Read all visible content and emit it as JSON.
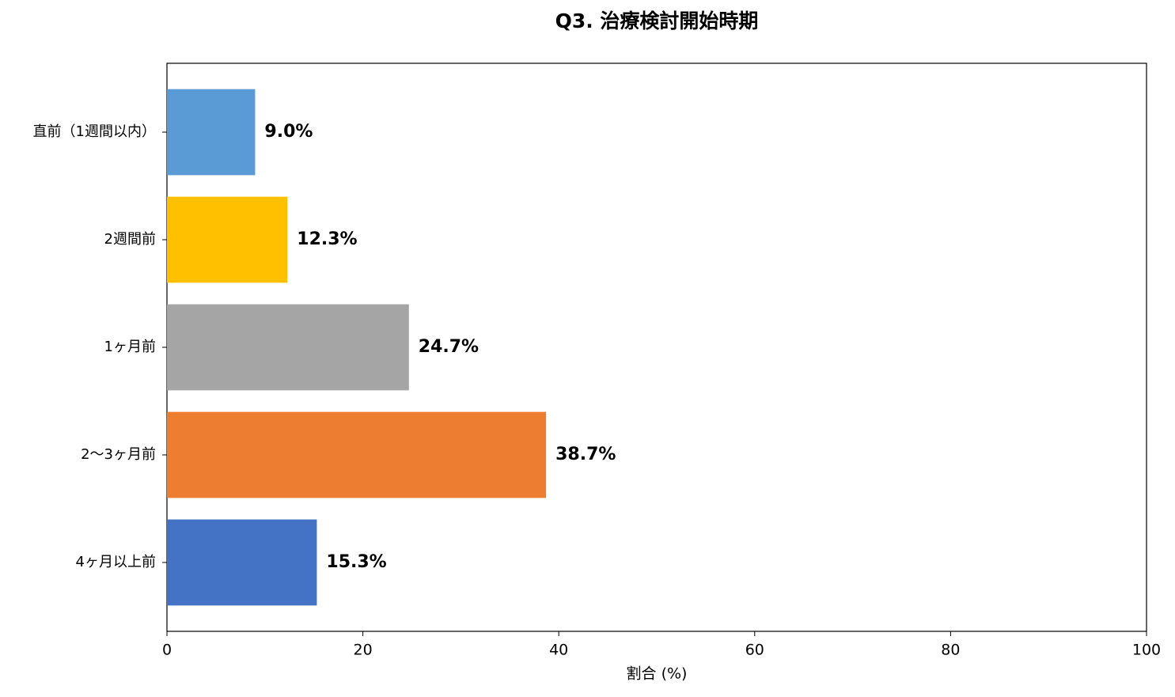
{
  "chart_data": {
    "type": "barh",
    "title": "Q3. 治療検討開始時期",
    "xlabel": "割合 (%)",
    "categories": [
      "直前（1週間以内）",
      "2週間前",
      "1ヶ月前",
      "2〜3ヶ月前",
      "4ヶ月以上前"
    ],
    "values": [
      9.0,
      12.3,
      24.7,
      38.7,
      15.3
    ],
    "value_labels": [
      "9.0%",
      "12.3%",
      "24.7%",
      "38.7%",
      "15.3%"
    ],
    "colors": [
      "#5b9bd5",
      "#ffc000",
      "#a5a5a5",
      "#ed7d31",
      "#4472c4"
    ],
    "xlim": [
      0,
      100
    ],
    "xticks": [
      0,
      20,
      40,
      60,
      80,
      100
    ],
    "grid": false
  }
}
